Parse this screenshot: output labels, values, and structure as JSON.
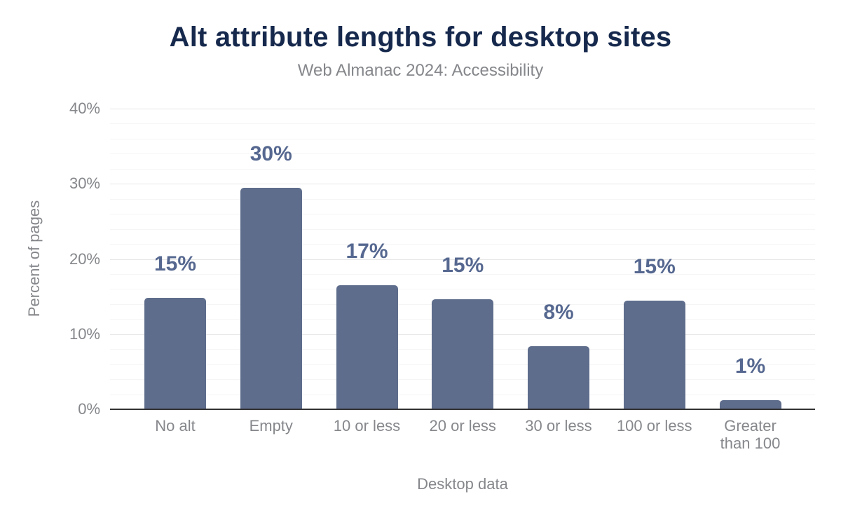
{
  "header": {
    "title": "Alt attribute lengths for desktop sites",
    "subtitle": "Web Almanac 2024: Accessibility"
  },
  "chart_data": {
    "type": "bar",
    "title": "Alt attribute lengths for desktop sites",
    "subtitle": "Web Almanac 2024: Accessibility",
    "xlabel": "Desktop data",
    "ylabel": "Percent of pages",
    "categories": [
      "No alt",
      "Empty",
      "10 or less",
      "20 or less",
      "30 or less",
      "100 or less",
      "Greater than 100"
    ],
    "x_tick_display": [
      "No alt",
      "Empty",
      "10 or less",
      "20 or less",
      "30 or less",
      "100 or less",
      "Greater\nthan 100"
    ],
    "values": [
      14.8,
      29.5,
      16.5,
      14.6,
      8.4,
      14.5,
      1.2
    ],
    "value_labels": [
      "15%",
      "30%",
      "17%",
      "15%",
      "8%",
      "15%",
      "1%"
    ],
    "ylim": [
      0,
      40
    ],
    "y_ticks": [
      0,
      10,
      20,
      30,
      40
    ],
    "y_tick_labels": [
      "0%",
      "10%",
      "20%",
      "30%",
      "40%"
    ],
    "minor_grid_step": 2,
    "grid": "on",
    "legend": "none"
  },
  "colors": {
    "bar": "#5e6d8c",
    "value_label": "#566890",
    "title": "#16294d",
    "muted_text": "#85878b",
    "grid_major": "#e7e7e7",
    "grid_minor": "#f5f5f5",
    "axis_line": "#333333",
    "background": "#ffffff"
  }
}
